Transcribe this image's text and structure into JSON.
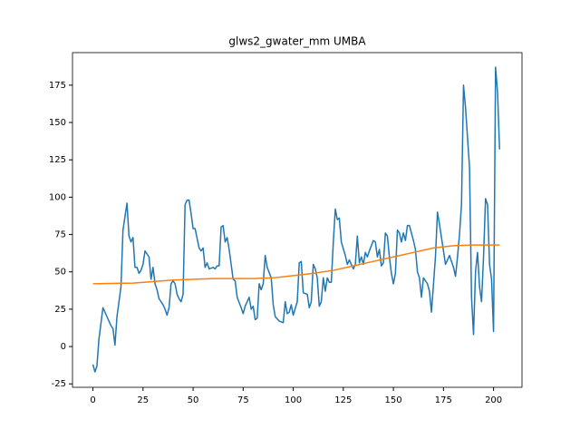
{
  "chart_data": {
    "type": "line",
    "title": "glws2_gwater_mm UMBA",
    "xlim": [
      -10.2,
      214.2
    ],
    "ylim": [
      -27.3,
      196.8
    ],
    "xticks": [
      0,
      25,
      50,
      75,
      100,
      125,
      150,
      175,
      200
    ],
    "yticks": [
      -25,
      0,
      25,
      50,
      75,
      100,
      125,
      150,
      175
    ],
    "grid": false,
    "series": [
      {
        "color": "#1f77b4",
        "x": [
          0,
          1,
          2,
          3,
          5,
          7,
          9,
          10,
          11,
          12,
          14,
          15,
          17,
          18,
          19,
          20,
          21,
          22,
          23,
          24,
          25,
          26,
          28,
          29,
          30,
          31,
          32,
          33,
          35,
          36,
          37,
          38,
          39,
          40,
          41,
          42,
          43,
          44,
          45,
          46,
          47,
          48,
          49,
          50,
          51,
          53,
          54,
          55,
          56,
          57,
          58,
          60,
          61,
          62,
          63,
          64,
          65,
          66,
          67,
          68,
          70,
          71,
          72,
          74,
          75,
          76,
          78,
          79,
          80,
          81,
          82,
          83,
          84,
          85,
          86,
          87,
          89,
          90,
          91,
          93,
          95,
          96,
          97,
          98,
          99,
          100,
          102,
          103,
          104,
          105,
          107,
          108,
          109,
          110,
          111,
          112,
          113,
          114,
          115,
          116,
          117,
          118,
          119,
          120,
          121,
          122,
          123,
          124,
          126,
          127,
          128,
          130,
          131,
          132,
          133,
          134,
          135,
          136,
          137,
          138,
          140,
          141,
          142,
          143,
          144,
          145,
          146,
          147,
          148,
          149,
          150,
          151,
          152,
          153,
          154,
          155,
          156,
          157,
          158,
          160,
          161,
          162,
          163,
          164,
          165,
          167,
          168,
          169,
          171,
          172,
          173,
          175,
          176,
          177,
          178,
          180,
          181,
          182,
          183,
          184,
          185,
          186,
          187,
          188,
          189,
          190,
          191,
          192,
          193,
          194,
          195,
          196,
          197,
          198,
          199,
          200,
          201,
          202,
          203
        ],
        "values": [
          -12,
          -17,
          -13,
          5,
          26,
          20,
          14,
          12,
          1,
          20,
          40,
          78,
          96,
          74,
          70,
          73,
          53,
          53,
          49,
          51,
          55,
          64,
          60,
          45,
          53,
          42,
          38,
          32,
          28,
          25,
          21,
          26,
          42,
          44,
          42,
          35,
          32,
          30,
          35,
          95,
          98,
          98,
          89,
          79,
          79,
          66,
          64,
          66,
          53,
          56,
          52,
          53,
          52,
          54,
          54,
          80,
          81,
          70,
          73,
          65,
          45,
          44,
          33,
          26,
          22,
          27,
          33,
          25,
          27,
          18,
          19,
          42,
          38,
          42,
          61,
          53,
          46,
          28,
          20,
          17,
          16,
          30,
          22,
          23,
          28,
          21,
          30,
          56,
          57,
          36,
          35,
          26,
          30,
          55,
          52,
          46,
          27,
          30,
          46,
          37,
          46,
          43,
          43,
          70,
          92,
          85,
          86,
          70,
          61,
          55,
          58,
          52,
          55,
          74,
          56,
          60,
          55,
          63,
          60,
          64,
          71,
          70,
          60,
          65,
          54,
          56,
          76,
          74,
          60,
          49,
          42,
          49,
          78,
          76,
          70,
          76,
          71,
          81,
          81,
          71,
          65,
          50,
          46,
          33,
          46,
          42,
          37,
          23,
          60,
          90,
          82,
          64,
          55,
          58,
          61,
          53,
          47,
          60,
          75,
          95,
          175,
          160,
          140,
          120,
          33,
          8,
          50,
          63,
          40,
          30,
          60,
          99,
          95,
          55,
          45,
          10,
          187,
          170,
          132
        ]
      },
      {
        "color": "#ff7f0e",
        "x": [
          0,
          20,
          40,
          60,
          80,
          90,
          100,
          110,
          120,
          130,
          140,
          150,
          160,
          170,
          180,
          190,
          203
        ],
        "values": [
          42,
          42.5,
          44.5,
          45.5,
          45.5,
          46,
          47.5,
          49,
          51,
          54,
          57,
          60,
          63,
          66,
          67.5,
          68,
          68
        ]
      }
    ]
  }
}
